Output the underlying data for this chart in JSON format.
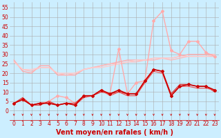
{
  "background_color": "#cceeff",
  "grid_color": "#aaaaaa",
  "xlabel": "Vent moyen/en rafales ( km/h )",
  "xlabel_color": "#cc0000",
  "xlabel_fontsize": 7,
  "yticks": [
    0,
    5,
    10,
    15,
    20,
    25,
    30,
    35,
    40,
    45,
    50,
    55
  ],
  "xticks": [
    0,
    1,
    2,
    3,
    4,
    5,
    6,
    7,
    8,
    9,
    10,
    11,
    12,
    13,
    14,
    15,
    16,
    17,
    18,
    19,
    20,
    21,
    22,
    23
  ],
  "ylim": [
    -4,
    58
  ],
  "xlim": [
    -0.5,
    23.5
  ],
  "tick_fontsize": 5.5,
  "series_light_1": [
    27,
    21,
    20,
    24,
    24,
    19,
    19,
    19,
    22,
    23,
    24,
    25,
    26,
    27,
    27,
    27,
    28,
    28,
    28,
    29,
    30,
    30,
    30,
    30
  ],
  "series_light_2": [
    26,
    22,
    21,
    23,
    23,
    20,
    19,
    20,
    22,
    23,
    24,
    25,
    25,
    26,
    26,
    27,
    27,
    28,
    27,
    28,
    29,
    29,
    29,
    29
  ],
  "series_light_3": [
    26,
    22,
    22,
    23,
    23,
    20,
    20,
    20,
    22,
    23,
    23,
    24,
    25,
    26,
    27,
    27,
    28,
    28,
    28,
    29,
    29,
    29,
    29,
    30
  ],
  "series_rafales_max": [
    4,
    6,
    3,
    4,
    5,
    8,
    7,
    4,
    8,
    8,
    11,
    9,
    33,
    9,
    15,
    16,
    48,
    53,
    32,
    30,
    37,
    37,
    31,
    29
  ],
  "series_rafales_1": [
    4,
    6,
    3,
    4,
    4,
    3,
    4,
    3,
    8,
    8,
    11,
    9,
    11,
    9,
    9,
    16,
    22,
    21,
    8,
    13,
    14,
    13,
    13,
    11
  ],
  "series_rafales_2": [
    4,
    7,
    3,
    3,
    5,
    3,
    4,
    4,
    8,
    8,
    10,
    9,
    10,
    9,
    9,
    15,
    22,
    21,
    9,
    14,
    14,
    13,
    13,
    10
  ],
  "series_rafales_3": [
    4,
    6,
    3,
    4,
    4,
    3,
    4,
    3,
    7,
    8,
    11,
    8,
    10,
    8,
    8,
    15,
    21,
    20,
    8,
    13,
    13,
    12,
    12,
    11
  ],
  "color_light1": "#ffaaaa",
  "color_light2": "#ffbbbb",
  "color_light3": "#ffcccc",
  "color_rafales_max": "#ffaaaa",
  "color_dark1": "#cc0000",
  "color_dark2": "#dd3333",
  "color_dark3": "#ee5555"
}
